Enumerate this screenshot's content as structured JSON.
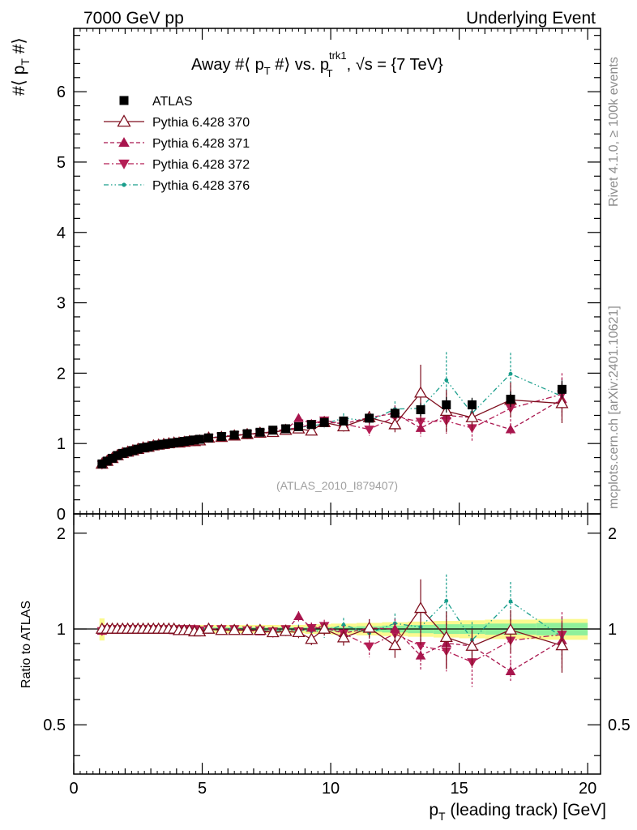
{
  "chart_data": {
    "type": "scatter",
    "header_left": "7000 GeV pp",
    "header_right": "Underlying Event",
    "title": "Away #⟨ p_T #⟩ vs. p_T^trk1, √s = {7 TeV}",
    "title_parts": {
      "a": "Away #⟨ p",
      "b": "T",
      "c": " #⟩ vs. p",
      "d": "trk1",
      "e": "T",
      "f": ", ",
      "g": "√",
      "h": "s = {7 TeV}"
    },
    "ylabel_parts": {
      "a": "#⟨ p",
      "b": "T",
      "c": " #⟩"
    },
    "xlabel_parts": {
      "a": "p",
      "b": "T",
      "c": " (leading track) [GeV]"
    },
    "xlabel": "p_T (leading track) [GeV]",
    "ylabel": "#⟨ p_T #⟩",
    "ratio_ylabel": "Ratio to ATLAS",
    "watermark": "(ATLAS_2010_I879407)",
    "side_text_top": "Rivet 4.1.0, ≥ 100k events",
    "side_text_bottom": "mcplots.cern.ch [arXiv:2401.10621]",
    "xlim": [
      0,
      20.5
    ],
    "ylim": [
      0,
      6.9
    ],
    "ratio_ylim": [
      0.35,
      2.3
    ],
    "x_ticks": [
      0,
      5,
      10,
      15,
      20
    ],
    "x_tick_labels": [
      "0",
      "5",
      "10",
      "15",
      "20"
    ],
    "y_ticks": [
      0,
      1,
      2,
      3,
      4,
      5,
      6
    ],
    "y_tick_labels": [
      "0",
      "1",
      "2",
      "3",
      "4",
      "5",
      "6"
    ],
    "ratio_y_ticks": [
      0.5,
      1,
      2
    ],
    "ratio_y_tick_labels": [
      "0.5",
      "1",
      "2"
    ],
    "x": [
      1.1,
      1.3,
      1.5,
      1.7,
      1.9,
      2.1,
      2.3,
      2.5,
      2.7,
      2.9,
      3.1,
      3.3,
      3.5,
      3.7,
      3.9,
      4.1,
      4.3,
      4.5,
      4.7,
      4.9,
      5.25,
      5.75,
      6.25,
      6.75,
      7.25,
      7.75,
      8.25,
      8.75,
      9.25,
      9.75,
      10.5,
      11.5,
      12.5,
      13.5,
      14.5,
      15.5,
      17.0,
      19.0
    ],
    "legend": {
      "position": "top-left"
    },
    "series": [
      {
        "name": "ATLAS",
        "color": "#000000",
        "marker": "square",
        "line": "none",
        "values": [
          0.71,
          0.75,
          0.79,
          0.83,
          0.86,
          0.88,
          0.9,
          0.92,
          0.94,
          0.95,
          0.97,
          0.98,
          0.99,
          1.0,
          1.01,
          1.02,
          1.03,
          1.04,
          1.05,
          1.06,
          1.08,
          1.1,
          1.12,
          1.14,
          1.16,
          1.19,
          1.21,
          1.24,
          1.27,
          1.3,
          1.32,
          1.36,
          1.43,
          1.48,
          1.55,
          1.55,
          1.63,
          1.77
        ],
        "err": [
          0.01,
          0.01,
          0.01,
          0.01,
          0.01,
          0.01,
          0.01,
          0.01,
          0.01,
          0.01,
          0.01,
          0.01,
          0.01,
          0.01,
          0.01,
          0.01,
          0.01,
          0.01,
          0.01,
          0.01,
          0.02,
          0.02,
          0.02,
          0.02,
          0.02,
          0.03,
          0.03,
          0.03,
          0.04,
          0.04,
          0.05,
          0.06,
          0.07,
          0.09,
          0.11,
          0.1,
          0.11,
          0.12
        ]
      },
      {
        "name": "Pythia 6.428 370",
        "color": "#7f0f1f",
        "marker": "triangle-up-open",
        "line": "solid",
        "values": [
          0.71,
          0.75,
          0.79,
          0.83,
          0.86,
          0.88,
          0.9,
          0.92,
          0.94,
          0.95,
          0.97,
          0.98,
          0.99,
          1.0,
          1.01,
          1.01,
          1.02,
          1.03,
          1.03,
          1.04,
          1.08,
          1.09,
          1.11,
          1.13,
          1.15,
          1.16,
          1.19,
          1.21,
          1.18,
          1.3,
          1.24,
          1.37,
          1.27,
          1.72,
          1.46,
          1.37,
          1.62,
          1.57
        ],
        "err": [
          0.02,
          0.02,
          0.02,
          0.02,
          0.02,
          0.02,
          0.02,
          0.02,
          0.02,
          0.02,
          0.02,
          0.02,
          0.02,
          0.02,
          0.02,
          0.02,
          0.02,
          0.02,
          0.02,
          0.02,
          0.03,
          0.03,
          0.03,
          0.03,
          0.03,
          0.04,
          0.04,
          0.05,
          0.05,
          0.06,
          0.07,
          0.09,
          0.11,
          0.4,
          0.3,
          0.18,
          0.25,
          0.28
        ]
      },
      {
        "name": "Pythia 6.428 371",
        "color": "#a8154d",
        "marker": "triangle-up",
        "line": "dashed",
        "values": [
          0.7,
          0.75,
          0.79,
          0.83,
          0.86,
          0.88,
          0.9,
          0.92,
          0.94,
          0.95,
          0.97,
          0.98,
          0.99,
          1.0,
          1.0,
          1.01,
          1.02,
          1.04,
          1.05,
          1.05,
          1.08,
          1.09,
          1.12,
          1.13,
          1.14,
          1.16,
          1.19,
          1.36,
          1.28,
          1.31,
          1.28,
          1.37,
          1.43,
          1.22,
          1.4,
          1.37,
          1.2,
          1.63
        ],
        "err": [
          0.02,
          0.02,
          0.02,
          0.02,
          0.02,
          0.02,
          0.02,
          0.02,
          0.02,
          0.02,
          0.02,
          0.02,
          0.02,
          0.02,
          0.02,
          0.02,
          0.02,
          0.02,
          0.02,
          0.02,
          0.03,
          0.03,
          0.03,
          0.03,
          0.03,
          0.04,
          0.04,
          0.05,
          0.05,
          0.06,
          0.07,
          0.09,
          0.11,
          0.12,
          0.22,
          0.15,
          0.08,
          0.3
        ]
      },
      {
        "name": "Pythia 6.428 372",
        "color": "#b41e55",
        "marker": "triangle-down",
        "line": "dashdot",
        "values": [
          0.7,
          0.75,
          0.79,
          0.83,
          0.86,
          0.88,
          0.9,
          0.92,
          0.94,
          0.95,
          0.97,
          0.98,
          0.99,
          1.0,
          1.0,
          1.02,
          1.03,
          1.04,
          1.05,
          1.05,
          1.08,
          1.1,
          1.12,
          1.13,
          1.15,
          1.17,
          1.21,
          1.22,
          1.28,
          1.33,
          1.28,
          1.2,
          1.38,
          1.31,
          1.32,
          1.22,
          1.5,
          1.7
        ],
        "err": [
          0.02,
          0.02,
          0.02,
          0.02,
          0.02,
          0.02,
          0.02,
          0.02,
          0.02,
          0.02,
          0.02,
          0.02,
          0.02,
          0.02,
          0.02,
          0.02,
          0.02,
          0.02,
          0.02,
          0.02,
          0.03,
          0.03,
          0.03,
          0.03,
          0.03,
          0.04,
          0.04,
          0.05,
          0.05,
          0.06,
          0.07,
          0.09,
          0.11,
          0.15,
          0.18,
          0.2,
          0.25,
          0.3
        ]
      },
      {
        "name": "Pythia 6.428 376",
        "color": "#1a9e8c",
        "marker": "dot",
        "line": "dashdotdot",
        "values": [
          0.71,
          0.75,
          0.79,
          0.83,
          0.86,
          0.88,
          0.9,
          0.92,
          0.94,
          0.95,
          0.97,
          0.98,
          0.99,
          0.99,
          1.0,
          1.02,
          1.03,
          1.04,
          1.05,
          1.06,
          1.08,
          1.1,
          1.12,
          1.13,
          1.15,
          1.17,
          1.2,
          1.23,
          1.25,
          1.28,
          1.36,
          1.32,
          1.49,
          1.5,
          1.9,
          1.43,
          1.99,
          1.67
        ],
        "err": [
          0.02,
          0.02,
          0.02,
          0.02,
          0.02,
          0.02,
          0.02,
          0.02,
          0.02,
          0.02,
          0.02,
          0.02,
          0.02,
          0.02,
          0.02,
          0.02,
          0.02,
          0.02,
          0.02,
          0.02,
          0.03,
          0.03,
          0.03,
          0.03,
          0.03,
          0.04,
          0.04,
          0.05,
          0.05,
          0.06,
          0.07,
          0.09,
          0.11,
          0.15,
          0.4,
          0.2,
          0.3,
          0.25
        ]
      }
    ],
    "ratio_band_bins": [
      [
        1.0,
        1.2
      ],
      [
        1.2,
        1.4
      ],
      [
        1.4,
        1.6
      ],
      [
        1.6,
        1.8
      ],
      [
        1.8,
        2.0
      ],
      [
        2.0,
        2.2
      ],
      [
        2.2,
        2.4
      ],
      [
        2.4,
        2.6
      ],
      [
        2.6,
        2.8
      ],
      [
        2.8,
        3.0
      ],
      [
        3.0,
        3.2
      ],
      [
        3.2,
        3.4
      ],
      [
        3.4,
        3.6
      ],
      [
        3.6,
        3.8
      ],
      [
        3.8,
        4.0
      ],
      [
        4.0,
        4.2
      ],
      [
        4.2,
        4.4
      ],
      [
        4.4,
        4.6
      ],
      [
        4.6,
        4.8
      ],
      [
        4.8,
        5.0
      ],
      [
        5.0,
        5.5
      ],
      [
        5.5,
        6.0
      ],
      [
        6.0,
        6.5
      ],
      [
        6.5,
        7.0
      ],
      [
        7.0,
        7.5
      ],
      [
        7.5,
        8.0
      ],
      [
        8.0,
        8.5
      ],
      [
        8.5,
        9.0
      ],
      [
        9.0,
        9.5
      ],
      [
        9.5,
        10.0
      ],
      [
        10.0,
        11.0
      ],
      [
        11.0,
        12.0
      ],
      [
        12.0,
        13.0
      ],
      [
        13.0,
        14.0
      ],
      [
        14.0,
        15.0
      ],
      [
        15.0,
        16.0
      ],
      [
        16.0,
        18.0
      ],
      [
        18.0,
        20.0
      ]
    ],
    "ratio_band_stat": [
      0.012,
      0.01,
      0.01,
      0.01,
      0.01,
      0.01,
      0.01,
      0.01,
      0.01,
      0.01,
      0.01,
      0.01,
      0.01,
      0.01,
      0.01,
      0.01,
      0.01,
      0.01,
      0.01,
      0.01,
      0.012,
      0.012,
      0.012,
      0.012,
      0.012,
      0.012,
      0.012,
      0.012,
      0.012,
      0.012,
      0.015,
      0.02,
      0.025,
      0.03,
      0.035,
      0.035,
      0.04,
      0.045
    ],
    "ratio_band_total": [
      0.08,
      0.03,
      0.03,
      0.03,
      0.03,
      0.03,
      0.03,
      0.03,
      0.03,
      0.03,
      0.03,
      0.03,
      0.03,
      0.03,
      0.03,
      0.03,
      0.03,
      0.03,
      0.03,
      0.03,
      0.03,
      0.03,
      0.03,
      0.03,
      0.03,
      0.03,
      0.03,
      0.03,
      0.035,
      0.035,
      0.04,
      0.045,
      0.05,
      0.055,
      0.06,
      0.065,
      0.07,
      0.075
    ]
  }
}
